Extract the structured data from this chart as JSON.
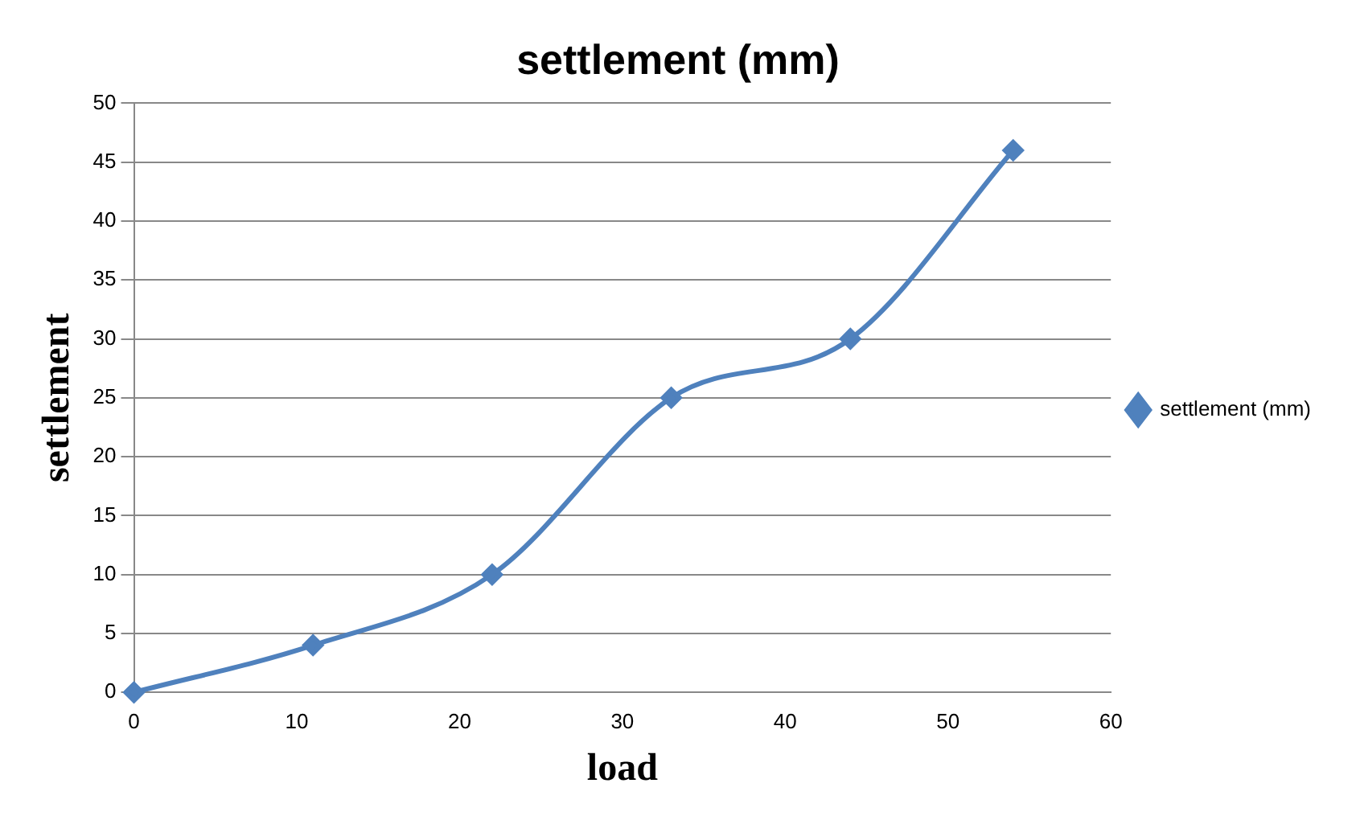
{
  "chart_data": {
    "type": "line",
    "title": "settlement (mm)",
    "xlabel": "load",
    "ylabel": "settlement",
    "x": [
      0,
      11,
      22,
      33,
      44,
      54
    ],
    "series": [
      {
        "name": "settlement (mm)",
        "color": "#4f81bd",
        "values": [
          0,
          4,
          10,
          25,
          30,
          46
        ]
      }
    ],
    "xlim": [
      0,
      60
    ],
    "xticks": [
      0,
      10,
      20,
      30,
      40,
      50,
      60
    ],
    "ylim": [
      0,
      50
    ],
    "yticks": [
      0,
      5,
      10,
      15,
      20,
      25,
      30,
      35,
      40,
      45,
      50
    ],
    "grid": "y",
    "legend": "right",
    "marker": "diamond",
    "line_style": "solid"
  }
}
